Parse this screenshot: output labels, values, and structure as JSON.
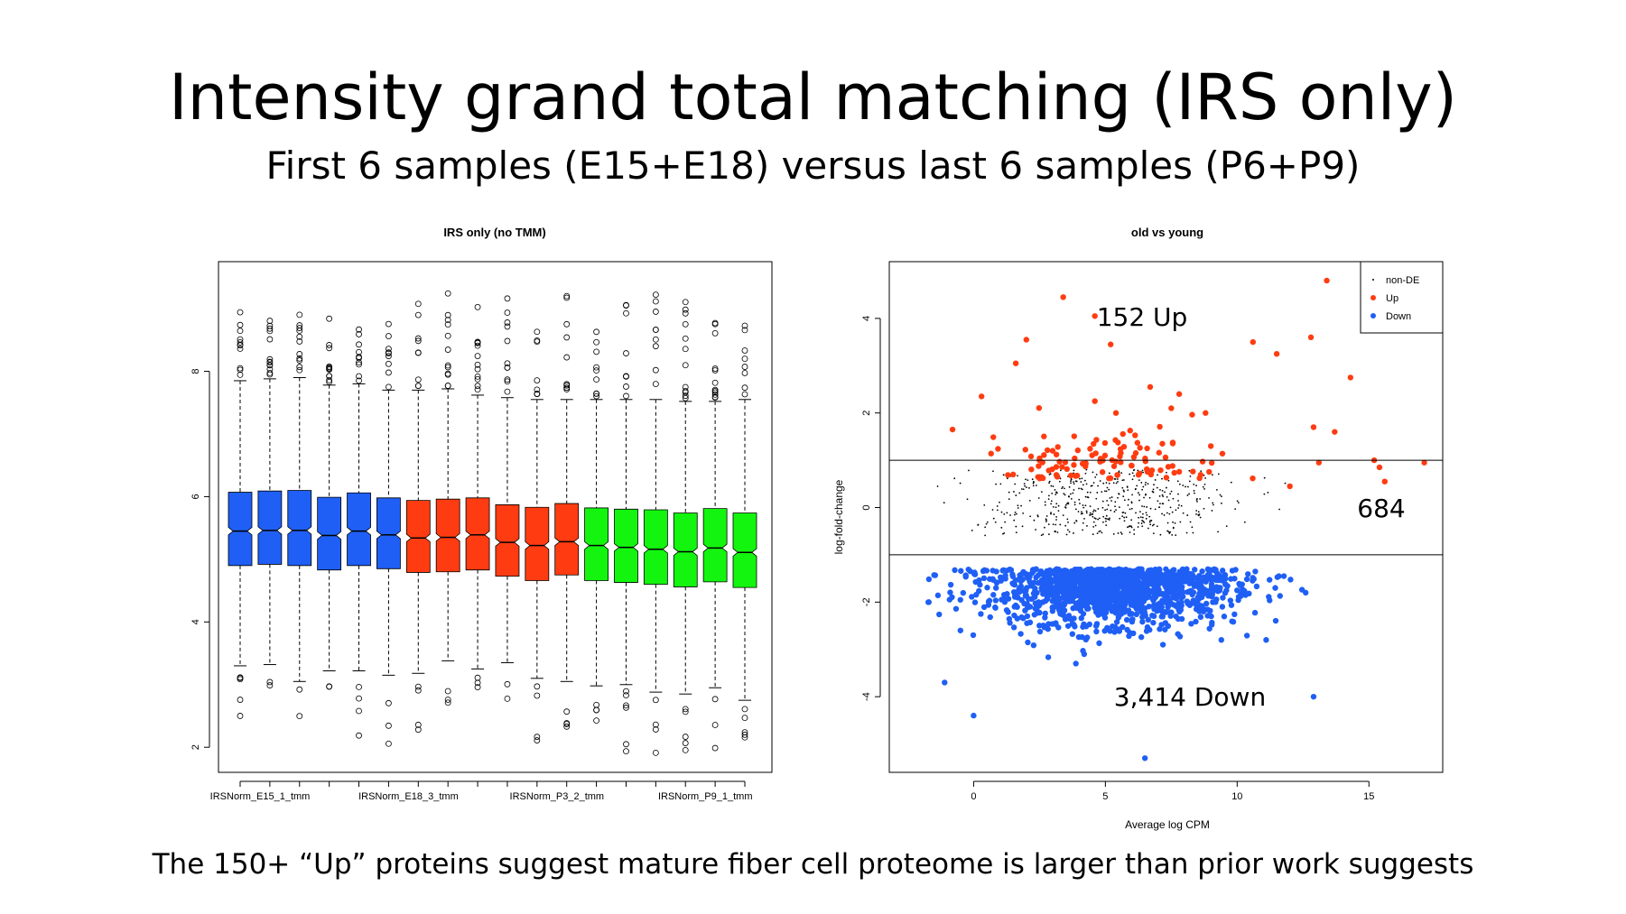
{
  "slide": {
    "title": "Intensity grand total matching (IRS only)",
    "subtitle": "First 6 samples (E15+E18) versus last 6 samples (P6+P9)",
    "caption": "The 150+ “Up” proteins suggest mature fiber cell proteome is larger than prior work suggests"
  },
  "chart_data": [
    {
      "type": "boxplot",
      "title": "IRS only (no TMM)",
      "xlabel": "",
      "ylabel": "",
      "ylim": [
        1.6,
        9.75
      ],
      "yticks": [
        2,
        4,
        6,
        8
      ],
      "xtick_labels": [
        "IRSNorm_E15_1_tmm",
        "IRSNorm_E18_3_tmm",
        "IRSNorm_P3_2_tmm",
        "IRSNorm_P9_1_tmm"
      ],
      "xtick_label_positions": [
        1,
        6,
        11,
        16
      ],
      "colors": {
        "blue": "#1f5ff5",
        "red": "#ff3c11",
        "green": "#13f50f"
      },
      "boxes": [
        {
          "color": "blue",
          "q1": 4.9,
          "median": 5.45,
          "q3": 6.07,
          "lw": 3.3,
          "uw": 7.85
        },
        {
          "color": "blue",
          "q1": 4.92,
          "median": 5.46,
          "q3": 6.09,
          "lw": 3.32,
          "uw": 7.88
        },
        {
          "color": "blue",
          "q1": 4.9,
          "median": 5.46,
          "q3": 6.1,
          "lw": 3.05,
          "uw": 7.9
        },
        {
          "color": "blue",
          "q1": 4.83,
          "median": 5.38,
          "q3": 5.99,
          "lw": 3.22,
          "uw": 7.78
        },
        {
          "color": "blue",
          "q1": 4.9,
          "median": 5.45,
          "q3": 6.06,
          "lw": 3.22,
          "uw": 7.8
        },
        {
          "color": "blue",
          "q1": 4.85,
          "median": 5.39,
          "q3": 5.98,
          "lw": 3.15,
          "uw": 7.7
        },
        {
          "color": "red",
          "q1": 4.79,
          "median": 5.34,
          "q3": 5.94,
          "lw": 3.18,
          "uw": 7.7
        },
        {
          "color": "red",
          "q1": 4.8,
          "median": 5.35,
          "q3": 5.96,
          "lw": 3.38,
          "uw": 7.72
        },
        {
          "color": "red",
          "q1": 4.83,
          "median": 5.39,
          "q3": 5.98,
          "lw": 3.25,
          "uw": 7.62
        },
        {
          "color": "red",
          "q1": 4.73,
          "median": 5.27,
          "q3": 5.87,
          "lw": 3.35,
          "uw": 7.58
        },
        {
          "color": "red",
          "q1": 4.66,
          "median": 5.22,
          "q3": 5.83,
          "lw": 3.1,
          "uw": 7.55
        },
        {
          "color": "red",
          "q1": 4.75,
          "median": 5.28,
          "q3": 5.89,
          "lw": 3.05,
          "uw": 7.55
        },
        {
          "color": "green",
          "q1": 4.66,
          "median": 5.22,
          "q3": 5.82,
          "lw": 2.98,
          "uw": 7.55
        },
        {
          "color": "green",
          "q1": 4.63,
          "median": 5.19,
          "q3": 5.8,
          "lw": 3.0,
          "uw": 7.55
        },
        {
          "color": "green",
          "q1": 4.6,
          "median": 5.16,
          "q3": 5.79,
          "lw": 2.88,
          "uw": 7.55
        },
        {
          "color": "green",
          "q1": 4.56,
          "median": 5.12,
          "q3": 5.74,
          "lw": 2.85,
          "uw": 7.52
        },
        {
          "color": "green",
          "q1": 4.64,
          "median": 5.18,
          "q3": 5.81,
          "lw": 2.95,
          "uw": 7.52
        },
        {
          "color": "green",
          "q1": 4.55,
          "median": 5.11,
          "q3": 5.74,
          "lw": 2.75,
          "uw": 7.55
        }
      ]
    },
    {
      "type": "scatter",
      "title": "old vs young",
      "xlabel": "Average log CPM",
      "ylabel": "log-fold-change",
      "xlim": [
        -3.2,
        17.8
      ],
      "ylim": [
        -5.6,
        5.2
      ],
      "xticks": [
        0,
        5,
        10,
        15
      ],
      "yticks": [
        -4,
        -2,
        0,
        2,
        4
      ],
      "hlines": [
        1,
        -1
      ],
      "legend": {
        "position": "top-right",
        "entries": [
          "non-DE",
          "Up",
          "Down"
        ]
      },
      "colors": {
        "nonDE": "#000000",
        "Up": "#ff3c11",
        "Down": "#1f5ff5"
      },
      "annotations": {
        "up": "152 Up",
        "nonde": "684",
        "down": "3,414 Down"
      },
      "counts": {
        "up": 152,
        "nonDE": 684,
        "down": 3414
      },
      "up_points": [
        [
          3.4,
          4.45
        ],
        [
          4.6,
          4.05
        ],
        [
          5.2,
          3.45
        ],
        [
          2.0,
          3.55
        ],
        [
          1.6,
          3.05
        ],
        [
          0.3,
          2.35
        ],
        [
          -0.8,
          1.65
        ],
        [
          6.7,
          2.55
        ],
        [
          4.6,
          2.25
        ],
        [
          7.8,
          2.4
        ],
        [
          11.5,
          3.25
        ],
        [
          10.6,
          3.5
        ],
        [
          13.4,
          4.8
        ],
        [
          12.8,
          3.6
        ],
        [
          14.3,
          2.75
        ],
        [
          12.9,
          1.7
        ],
        [
          13.7,
          1.6
        ],
        [
          15.2,
          1.0
        ],
        [
          15.6,
          0.55
        ],
        [
          17.1,
          0.95
        ],
        [
          15.4,
          0.85
        ],
        [
          13.1,
          0.95
        ],
        [
          12.0,
          0.45
        ],
        [
          2.5,
          1.0
        ],
        [
          5.4,
          2.0
        ],
        [
          7.5,
          2.1
        ],
        [
          9.0,
          1.3
        ],
        [
          1.5,
          0.7
        ],
        [
          3.0,
          1.2
        ],
        [
          8.8,
          2.0
        ]
      ]
    }
  ]
}
